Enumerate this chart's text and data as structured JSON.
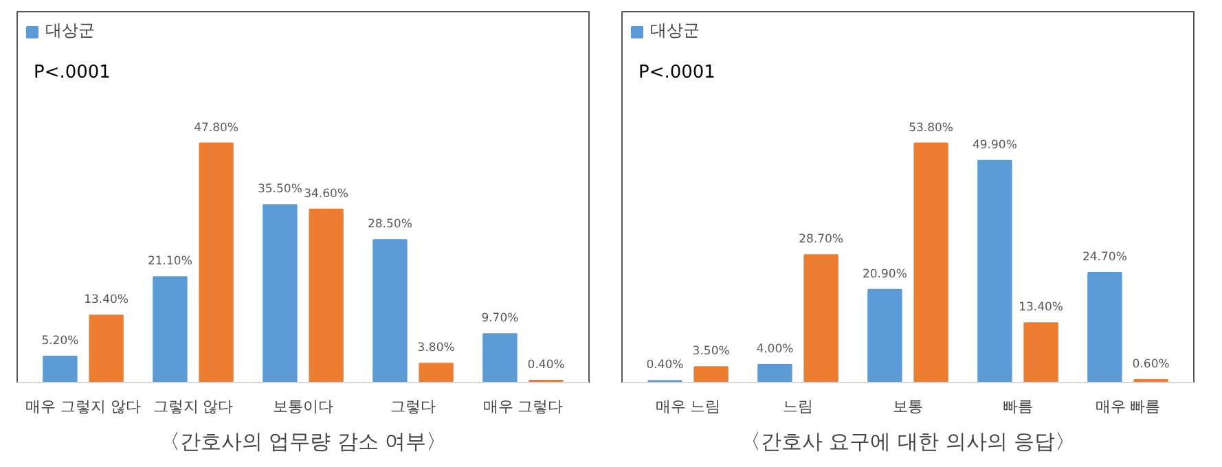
{
  "chart_data": [
    {
      "type": "bar",
      "title": "〈간호사의 업무량 감소 여부〉",
      "categories": [
        "매우 그렇지 않다",
        "그렇지 않다",
        "보통이다",
        "그렇다",
        "매우 그렇다"
      ],
      "series": [
        {
          "name": "대상군",
          "color": "#5b9bd5",
          "values": [
            5.2,
            21.1,
            35.5,
            28.5,
            9.7
          ],
          "value_labels": [
            "5.20%",
            "21.10%",
            "35.50%",
            "28.50%",
            "9.70%"
          ]
        },
        {
          "color": "#ed7d31",
          "values": [
            13.4,
            47.8,
            34.6,
            3.8,
            0.4
          ],
          "value_labels": [
            "13.40%",
            "47.80%",
            "34.60%",
            "3.80%",
            "0.40%"
          ]
        }
      ],
      "annotations": [
        "P<.0001"
      ],
      "legend": "top left",
      "grid": false
    },
    {
      "type": "bar",
      "title": "〈간호사 요구에 대한 의사의 응답〉",
      "categories": [
        "매우 느림",
        "느림",
        "보통",
        "빠름",
        "매우 빠름"
      ],
      "series": [
        {
          "name": "대상군",
          "color": "#5b9bd5",
          "values": [
            0.4,
            4.0,
            20.9,
            49.9,
            24.7
          ],
          "value_labels": [
            "0.40%",
            "4.00%",
            "20.90%",
            "49.90%",
            "24.70%"
          ]
        },
        {
          "color": "#ed7d31",
          "values": [
            3.5,
            28.7,
            53.8,
            13.4,
            0.6
          ],
          "value_labels": [
            "3.50%",
            "28.70%",
            "53.80%",
            "13.40%",
            "0.60%"
          ]
        }
      ],
      "annotations": [
        "P<.0001"
      ],
      "legend": "top left",
      "grid": false
    }
  ]
}
